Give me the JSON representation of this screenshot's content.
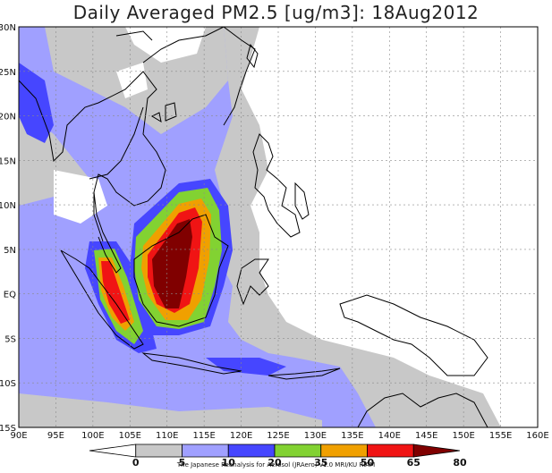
{
  "title": "Daily Averaged PM2.5 [ug/m3]: 18Aug2012",
  "lat_labels": [
    "30N",
    "25N",
    "20N",
    "15N",
    "10N",
    "5N",
    "EQ",
    "5S",
    "10S",
    "15S"
  ],
  "lon_labels": [
    "90E",
    "95E",
    "100E",
    "105E",
    "110E",
    "115E",
    "120E",
    "125E",
    "130E",
    "135E",
    "140E",
    "145E",
    "150E",
    "155E",
    "160E"
  ],
  "colorbar": {
    "levels": [
      "0",
      "5",
      "10",
      "20",
      "35",
      "50",
      "65",
      "80"
    ],
    "colors": [
      "#ffffff",
      "#c8c8c8",
      "#a0a0ff",
      "#4646ff",
      "#82d232",
      "#f0a000",
      "#f01414",
      "#800000"
    ]
  },
  "credit": "The Japanese Reanalysis for Aerosol (JRAero) v1.0 MRI/KU RIAM"
}
